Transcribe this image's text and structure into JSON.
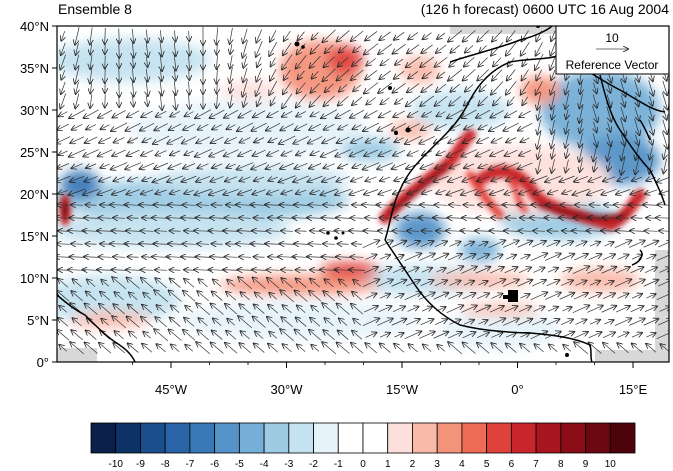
{
  "header": {
    "left_title": "Ensemble 8",
    "right_title": "(126 h forecast) 0600 UTC 16 Aug 2004"
  },
  "map": {
    "lat_labels": [
      "40°N",
      "35°N",
      "30°N",
      "25°N",
      "20°N",
      "15°N",
      "10°N",
      "5°N",
      "0°"
    ],
    "lon_labels": [
      "45°W",
      "30°W",
      "15°W",
      "0°",
      "15°E"
    ],
    "reference_vector": {
      "magnitude": "10",
      "label": "Reference Vector"
    }
  },
  "colorbar": {
    "labels": [
      "-10",
      "-9",
      "-8",
      "-7",
      "-6",
      "-5",
      "-4",
      "-3",
      "-2",
      "-1",
      "0",
      "1",
      "2",
      "3",
      "4",
      "5",
      "6",
      "7",
      "8",
      "9",
      "10"
    ],
    "colors": [
      "#0a1f4a",
      "#0d3266",
      "#1a4e8c",
      "#2a63a6",
      "#3a79b8",
      "#5493c7",
      "#75aed6",
      "#9ccbe3",
      "#c4e2f0",
      "#e6f3fa",
      "#ffffff",
      "#ffffff",
      "#fde0dc",
      "#f9baaa",
      "#f4937c",
      "#ee6c55",
      "#e0413a",
      "#c8262b",
      "#a8161f",
      "#8a0c17",
      "#6b0710",
      "#4d030a"
    ]
  }
}
